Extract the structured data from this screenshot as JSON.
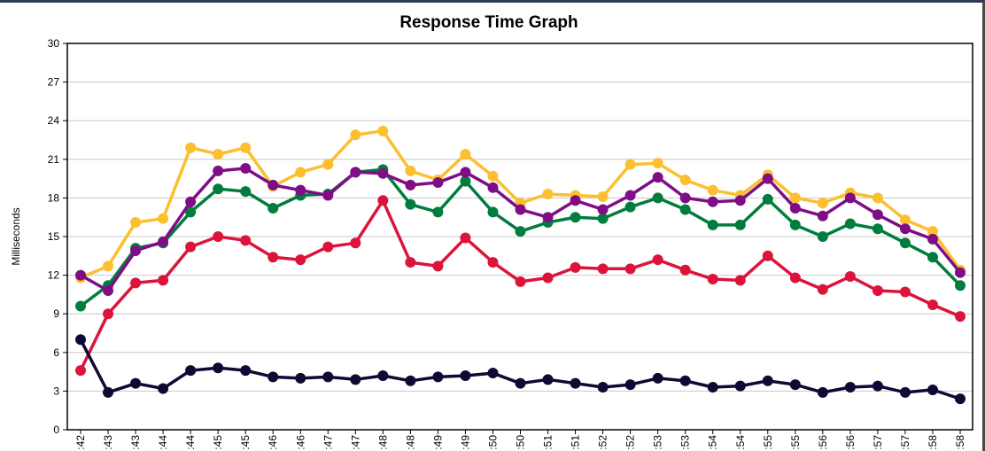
{
  "chart_data": {
    "type": "line",
    "title": "Response Time Graph",
    "xlabel": "",
    "ylabel": "Milliseconds",
    "ylim": [
      0,
      30
    ],
    "yticks": [
      0,
      3,
      6,
      9,
      12,
      15,
      18,
      21,
      24,
      27,
      30
    ],
    "grid": true,
    "legend": "none",
    "x": [
      ":42",
      ":43",
      ":43",
      ":44",
      ":44",
      ":45",
      ":45",
      ":46",
      ":46",
      ":47",
      ":47",
      ":48",
      ":48",
      ":49",
      ":49",
      ":50",
      ":50",
      ":51",
      ":51",
      ":52",
      ":52",
      ":53",
      ":53",
      ":54",
      ":54",
      ":55",
      ":55",
      ":56",
      ":56",
      ":57",
      ":57",
      ":58",
      ":58"
    ],
    "series": [
      {
        "color": "#fbbf2f",
        "values": [
          11.8,
          12.7,
          16.1,
          16.4,
          21.9,
          21.4,
          21.9,
          18.9,
          20.0,
          20.6,
          22.9,
          23.2,
          20.1,
          19.4,
          21.4,
          19.7,
          17.6,
          18.3,
          18.2,
          18.1,
          20.6,
          20.7,
          19.4,
          18.6,
          18.2,
          19.8,
          18.0,
          17.6,
          18.4,
          18.0,
          16.3,
          15.4,
          12.4
        ]
      },
      {
        "color": "#007d3e",
        "values": [
          9.6,
          11.2,
          14.1,
          14.5,
          16.9,
          18.7,
          18.5,
          17.2,
          18.2,
          18.3,
          20.0,
          20.2,
          17.5,
          16.9,
          19.3,
          16.9,
          15.4,
          16.1,
          16.5,
          16.4,
          17.3,
          18.0,
          17.1,
          15.9,
          15.9,
          17.9,
          15.9,
          15.0,
          16.0,
          15.6,
          14.5,
          13.4,
          11.2
        ]
      },
      {
        "color": "#7f0e86",
        "values": [
          12.0,
          10.8,
          13.9,
          14.6,
          17.7,
          20.1,
          20.3,
          19.0,
          18.6,
          18.2,
          20.0,
          19.9,
          19.0,
          19.2,
          20.0,
          18.8,
          17.1,
          16.5,
          17.8,
          17.1,
          18.2,
          19.6,
          18.0,
          17.7,
          17.8,
          19.5,
          17.2,
          16.6,
          18.0,
          16.7,
          15.6,
          14.8,
          12.2
        ]
      },
      {
        "color": "#dc143c",
        "values": [
          4.6,
          9.0,
          11.4,
          11.6,
          14.2,
          15.0,
          14.7,
          13.4,
          13.2,
          14.2,
          14.5,
          17.8,
          13.0,
          12.7,
          14.9,
          13.0,
          11.5,
          11.8,
          12.6,
          12.5,
          12.5,
          13.2,
          12.4,
          11.7,
          11.6,
          13.5,
          11.8,
          10.9,
          11.9,
          10.8,
          10.7,
          9.7,
          8.8
        ]
      },
      {
        "color": "#0d0a33",
        "values": [
          7.0,
          2.9,
          3.6,
          3.2,
          4.6,
          4.8,
          4.6,
          4.1,
          4.0,
          4.1,
          3.9,
          4.2,
          3.8,
          4.1,
          4.2,
          4.4,
          3.6,
          3.9,
          3.6,
          3.3,
          3.5,
          4.0,
          3.8,
          3.3,
          3.4,
          3.8,
          3.5,
          2.9,
          3.3,
          3.4,
          2.9,
          3.1,
          2.4
        ]
      }
    ]
  }
}
